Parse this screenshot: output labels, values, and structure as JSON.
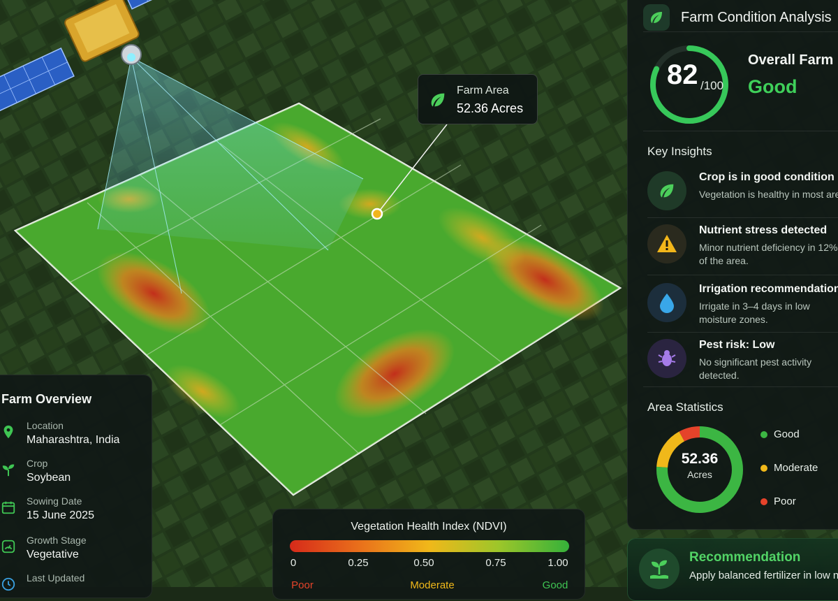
{
  "colors": {
    "good": "#34b33c",
    "moderate": "#f0b81a",
    "poor": "#d93a25",
    "accent": "#3fd05a"
  },
  "map_callout": {
    "icon": "leaf-icon",
    "label": "Farm Area",
    "value": "52.36 Acres"
  },
  "right_panel": {
    "header_icon": "leaf-icon",
    "title": "Farm Condition Analysis",
    "score": {
      "value": "82",
      "max": "/100",
      "fraction": 0.82,
      "title": "Overall Farm Health",
      "status": "Good"
    },
    "insights_title": "Key Insights",
    "insights": [
      {
        "icon": "leaf-icon",
        "title": "Crop is in good condition",
        "desc": "Vegetation is healthy in most areas."
      },
      {
        "icon": "warning-icon",
        "title": "Nutrient stress detected",
        "desc": "Minor nutrient deficiency in 12% of the area."
      },
      {
        "icon": "water-drop-icon",
        "title": "Irrigation recommendation",
        "desc": "Irrigate in 3–4 days in low moisture zones."
      },
      {
        "icon": "bug-icon",
        "title": "Pest risk: Low",
        "desc": "No significant pest activity detected."
      }
    ],
    "stats_title": "Area Statistics",
    "stats_center_value": "52.36",
    "stats_center_unit": "Acres",
    "legend": [
      {
        "label": "Good",
        "color": "#3cb643",
        "share": 0.76
      },
      {
        "label": "Moderate",
        "color": "#f0b81a",
        "share": 0.16
      },
      {
        "label": "Poor",
        "color": "#e5432a",
        "share": 0.08
      }
    ]
  },
  "left_panel": {
    "title": "Farm Overview",
    "items": [
      {
        "icon": "location-pin-icon",
        "label": "Location",
        "value": "Maharashtra, India"
      },
      {
        "icon": "sprout-icon",
        "label": "Crop",
        "value": "Soybean"
      },
      {
        "icon": "calendar-icon",
        "label": "Sowing Date",
        "value": "15 June 2025"
      },
      {
        "icon": "gauge-icon",
        "label": "Growth Stage",
        "value": "Vegetative"
      },
      {
        "icon": "clock-icon",
        "label": "Last Updated",
        "value": ""
      }
    ]
  },
  "ndvi": {
    "title": "Vegetation Health Index (NDVI)",
    "ticks": [
      "0",
      "0.25",
      "0.50",
      "0.75",
      "1.00"
    ],
    "categories": [
      "Poor",
      "Moderate",
      "Good"
    ]
  },
  "recommendation": {
    "icon": "plant-hand-icon",
    "title": "Recommendation",
    "text": "Apply balanced fertilizer in low nutrient zones."
  }
}
